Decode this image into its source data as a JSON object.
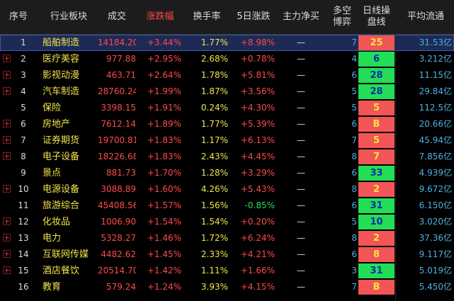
{
  "headers": {
    "no": "序号",
    "sector": "行业板块",
    "volume": "成交",
    "change": "涨跌幅",
    "turnover": "换手率",
    "five_day": "5日涨跌",
    "main_net": "主力净买",
    "long_short": "多空\n博弈",
    "day_line": "日线操\n盘线",
    "avg_float": "平均流通"
  },
  "rows": [
    {
      "no": "1",
      "expand": "",
      "name": "船舶制造",
      "volume": "14184.20",
      "change": "+3.44%",
      "turnover": "1.77%",
      "five_day": "+8.98%",
      "five_dir": "up",
      "main_net": "—",
      "long_short": "7",
      "day_line": "25",
      "day_color": "r",
      "avg_float": "31.53亿",
      "selected": true
    },
    {
      "no": "2",
      "expand": "+",
      "name": "医疗美容",
      "volume": "977.88",
      "change": "+2.95%",
      "turnover": "2.68%",
      "five_day": "+0.78%",
      "five_dir": "up",
      "main_net": "—",
      "long_short": "4",
      "day_line": "6",
      "day_color": "g",
      "avg_float": "3.212亿"
    },
    {
      "no": "3",
      "expand": "+",
      "name": "影视动漫",
      "volume": "463.71",
      "change": "+2.64%",
      "turnover": "1.78%",
      "five_day": "+5.81%",
      "five_dir": "up",
      "main_net": "—",
      "long_short": "6",
      "day_line": "28",
      "day_color": "g",
      "avg_float": "11.15亿"
    },
    {
      "no": "4",
      "expand": "+",
      "name": "汽车制造",
      "volume": "28760.24",
      "change": "+1.99%",
      "turnover": "1.87%",
      "five_day": "+3.56%",
      "five_dir": "up",
      "main_net": "—",
      "long_short": "5",
      "day_line": "28",
      "day_color": "g",
      "avg_float": "29.84亿"
    },
    {
      "no": "5",
      "expand": "",
      "name": "保险",
      "volume": "3398.15",
      "change": "+1.91%",
      "turnover": "0.24%",
      "five_day": "+4.30%",
      "five_dir": "up",
      "main_net": "—",
      "long_short": "5",
      "day_line": "5",
      "day_color": "r",
      "avg_float": "112.5亿"
    },
    {
      "no": "6",
      "expand": "+",
      "name": "房地产",
      "volume": "7612.14",
      "change": "+1.89%",
      "turnover": "1.77%",
      "five_day": "+5.39%",
      "five_dir": "up",
      "main_net": "—",
      "long_short": "6",
      "day_line": "B",
      "day_color": "r",
      "avg_float": "20.66亿"
    },
    {
      "no": "7",
      "expand": "+",
      "name": "证券期货",
      "volume": "19700.81",
      "change": "+1.83%",
      "turnover": "1.17%",
      "five_day": "+6.13%",
      "five_dir": "up",
      "main_net": "—",
      "long_short": "7",
      "day_line": "5",
      "day_color": "r",
      "avg_float": "45.94亿"
    },
    {
      "no": "8",
      "expand": "+",
      "name": "电子设备",
      "volume": "18226.68",
      "change": "+1.83%",
      "turnover": "2.43%",
      "five_day": "+4.45%",
      "five_dir": "up",
      "main_net": "—",
      "long_short": "8",
      "day_line": "7",
      "day_color": "r",
      "avg_float": "7.856亿"
    },
    {
      "no": "9",
      "expand": "",
      "name": "景点",
      "volume": "881.73",
      "change": "+1.70%",
      "turnover": "1.28%",
      "five_day": "+3.29%",
      "five_dir": "up",
      "main_net": "—",
      "long_short": "6",
      "day_line": "33",
      "day_color": "g",
      "avg_float": "4.939亿"
    },
    {
      "no": "10",
      "expand": "+",
      "name": "电源设备",
      "volume": "3088.89",
      "change": "+1.60%",
      "turnover": "4.26%",
      "five_day": "+5.43%",
      "five_dir": "up",
      "main_net": "—",
      "long_short": "8",
      "day_line": "2",
      "day_color": "r",
      "avg_float": "9.672亿"
    },
    {
      "no": "11",
      "expand": "",
      "name": "旅游综合",
      "volume": "45408.56",
      "change": "+1.57%",
      "turnover": "1.56%",
      "five_day": "-0.85%",
      "five_dir": "dn",
      "main_net": "—",
      "long_short": "6",
      "day_line": "31",
      "day_color": "g",
      "avg_float": "6.150亿"
    },
    {
      "no": "12",
      "expand": "+",
      "name": "化妆品",
      "volume": "1006.90",
      "change": "+1.54%",
      "turnover": "1.54%",
      "five_day": "+0.20%",
      "five_dir": "up",
      "main_net": "—",
      "long_short": "5",
      "day_line": "10",
      "day_color": "g",
      "avg_float": "3.020亿"
    },
    {
      "no": "13",
      "expand": "+",
      "name": "电力",
      "volume": "5328.27",
      "change": "+1.46%",
      "turnover": "1.72%",
      "five_day": "+6.24%",
      "five_dir": "up",
      "main_net": "—",
      "long_short": "8",
      "day_line": "2",
      "day_color": "r",
      "avg_float": "37.36亿"
    },
    {
      "no": "14",
      "expand": "+",
      "name": "互联网传媒",
      "volume": "4482.62",
      "change": "+1.45%",
      "turnover": "2.33%",
      "five_day": "+4.21%",
      "five_dir": "up",
      "main_net": "—",
      "long_short": "6",
      "day_line": "8",
      "day_color": "r",
      "avg_float": "9.117亿"
    },
    {
      "no": "15",
      "expand": "+",
      "name": "酒店餐饮",
      "volume": "20514.70",
      "change": "+1.42%",
      "turnover": "1.11%",
      "five_day": "+1.66%",
      "five_dir": "up",
      "main_net": "—",
      "long_short": "3",
      "day_line": "31",
      "day_color": "g",
      "avg_float": "5.019亿"
    },
    {
      "no": "16",
      "expand": "",
      "name": "教育",
      "volume": "579.24",
      "change": "+1.24%",
      "turnover": "3.93%",
      "five_day": "+4.15%",
      "five_dir": "up",
      "main_net": "—",
      "long_short": "7",
      "day_line": "B",
      "day_color": "r",
      "avg_float": "5.450亿"
    }
  ]
}
